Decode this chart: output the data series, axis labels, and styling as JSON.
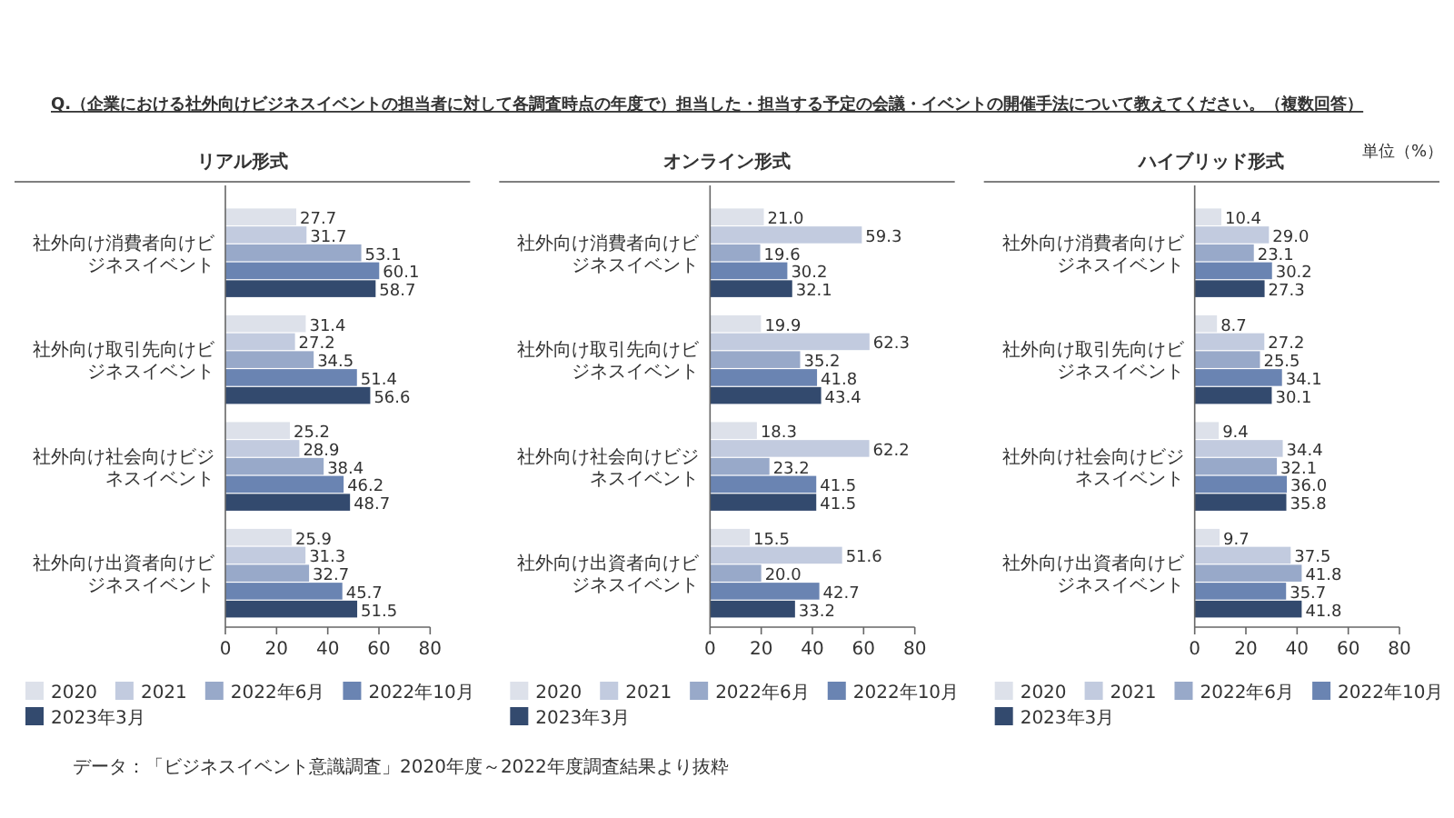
{
  "chart_data": [
    {
      "type": "bar",
      "orientation": "horizontal",
      "title": "リアル形式",
      "annotations": [
        "Q.（企業における社外向けビジネスイベントの担当者に対して各調査時点の年度で）担当した・担当する予定の会議・イベントの開催手法について教えてください。（複数回答）",
        "データ：「ビジネスイベント意識調査」2020年度～2022年度調査結果より抜粋"
      ],
      "categories": [
        "社外向け消費者向けビジネスイベント",
        "社外向け取引先向けビジネスイベント",
        "社外向け社会向けビジネスイベント",
        "社外向け出資者向けビジネスイベント"
      ],
      "series": [
        {
          "name": "2020",
          "color": "#dde1ea",
          "values": [
            27.7,
            31.4,
            25.2,
            25.9
          ],
          "value_labels": [
            "27.7",
            "31.4",
            "25.2",
            "25.9"
          ]
        },
        {
          "name": "2021",
          "color": "#c2cbdf",
          "values": [
            31.7,
            27.2,
            28.9,
            31.3
          ],
          "value_labels": [
            "31.7",
            "27.2",
            "28.9",
            "31.3"
          ]
        },
        {
          "name": "2022年6月",
          "color": "#98a9c9",
          "values": [
            53.1,
            34.5,
            38.4,
            32.7
          ],
          "value_labels": [
            "53.1",
            "34.5",
            "38.4",
            "32.7"
          ]
        },
        {
          "name": "2022年10月",
          "color": "#6a84b2",
          "values": [
            60.1,
            51.4,
            46.2,
            45.7
          ],
          "value_labels": [
            "60.1",
            "51.4",
            "46.2",
            "45.7"
          ]
        },
        {
          "name": "2023年3月",
          "color": "#334a6e",
          "values": [
            58.7,
            56.6,
            48.7,
            51.5
          ],
          "value_labels": [
            "58.7",
            "56.6",
            "48.7",
            "51.5"
          ]
        }
      ],
      "xlim": [
        0,
        80
      ],
      "xticks": [
        0,
        20,
        40,
        60,
        80
      ],
      "legend": "bottom"
    },
    {
      "type": "bar",
      "orientation": "horizontal",
      "title": "オンライン形式",
      "categories": [
        "社外向け消費者向けビジネスイベント",
        "社外向け取引先向けビジネスイベント",
        "社外向け社会向けビジネスイベント",
        "社外向け出資者向けビジネスイベント"
      ],
      "series": [
        {
          "name": "2020",
          "color": "#dde1ea",
          "values": [
            21.0,
            19.9,
            18.3,
            15.5
          ],
          "value_labels": [
            "21.0",
            "19.9",
            "18.3",
            "15.5"
          ]
        },
        {
          "name": "2021",
          "color": "#c2cbdf",
          "values": [
            59.3,
            62.3,
            62.2,
            51.6
          ],
          "value_labels": [
            "59.3",
            "62.3",
            "62.2",
            "51.6"
          ]
        },
        {
          "name": "2022年6月",
          "color": "#98a9c9",
          "values": [
            19.6,
            35.2,
            23.2,
            20.0
          ],
          "value_labels": [
            "19.6",
            "35.2",
            "23.2",
            "20.0"
          ]
        },
        {
          "name": "2022年10月",
          "color": "#6a84b2",
          "values": [
            30.2,
            41.8,
            41.5,
            42.7
          ],
          "value_labels": [
            "30.2",
            "41.8",
            "41.5",
            "42.7"
          ]
        },
        {
          "name": "2023年3月",
          "color": "#334a6e",
          "values": [
            32.1,
            43.4,
            41.5,
            33.2
          ],
          "value_labels": [
            "32.1",
            "43.4",
            "41.5",
            "33.2"
          ]
        }
      ],
      "xlim": [
        0,
        80
      ],
      "xticks": [
        0,
        20,
        40,
        60,
        80
      ],
      "legend": "bottom"
    },
    {
      "type": "bar",
      "orientation": "horizontal",
      "title": "ハイブリッド形式",
      "annotations": [
        "単位（%）"
      ],
      "categories": [
        "社外向け消費者向けビジネスイベント",
        "社外向け取引先向けビジネスイベント",
        "社外向け社会向けビジネスイベント",
        "社外向け出資者向けビジネスイベント"
      ],
      "series": [
        {
          "name": "2020",
          "color": "#dde1ea",
          "values": [
            10.4,
            8.7,
            9.4,
            9.7
          ],
          "value_labels": [
            "10.4",
            "8.7",
            "9.4",
            "9.7"
          ]
        },
        {
          "name": "2021",
          "color": "#c2cbdf",
          "values": [
            29.0,
            27.2,
            34.4,
            37.5
          ],
          "value_labels": [
            "29.0",
            "27.2",
            "34.4",
            "37.5"
          ]
        },
        {
          "name": "2022年6月",
          "color": "#98a9c9",
          "values": [
            23.1,
            25.5,
            32.1,
            41.8
          ],
          "value_labels": [
            "23.1",
            "25.5",
            "32.1",
            "41.8"
          ]
        },
        {
          "name": "2022年10月",
          "color": "#6a84b2",
          "values": [
            30.2,
            34.1,
            36.0,
            35.7
          ],
          "value_labels": [
            "30.2",
            "34.1",
            "36.0",
            "35.7"
          ]
        },
        {
          "name": "2023年3月",
          "color": "#334a6e",
          "values": [
            27.3,
            30.1,
            35.8,
            41.8
          ],
          "value_labels": [
            "27.3",
            "30.1",
            "35.8",
            "41.8"
          ]
        }
      ],
      "xlim": [
        0,
        80
      ],
      "xticks": [
        0,
        20,
        40,
        60,
        80
      ],
      "legend": "bottom"
    }
  ]
}
